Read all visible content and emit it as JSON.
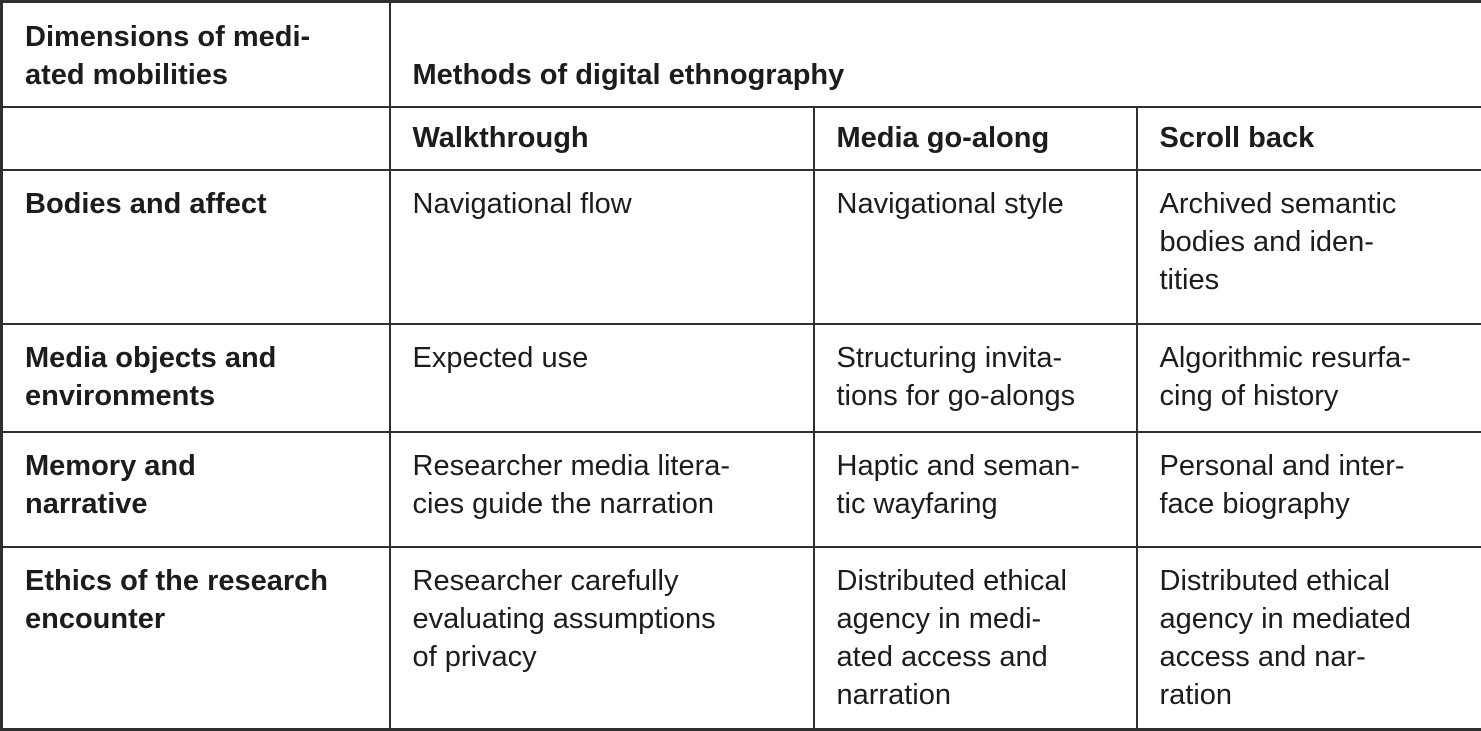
{
  "table": {
    "corner_header": "Dimensions of medi-\nated mobilities",
    "span_header": "Methods of digital ethnography",
    "method_columns": [
      "Walkthrough",
      "Media go-along",
      "Scroll back"
    ],
    "rows": [
      {
        "cells": [
          "Bodies and affect",
          "Navigational flow",
          "Navigational style",
          "Archived semantic\nbodies and iden-\ntities"
        ]
      },
      {
        "cells": [
          "Media objects and\nenvironments",
          "Expected use",
          "Structuring invita-\ntions for go-alongs",
          "Algorithmic resurfa-\ncing of history"
        ]
      },
      {
        "cells": [
          "Memory and\nnarrative",
          "Researcher media litera-\ncies guide the narration",
          "Haptic and seman-\ntic wayfaring",
          "Personal and inter-\nface biography"
        ]
      },
      {
        "cells": [
          "Ethics of the research\nencounter",
          "Researcher carefully\nevaluating assumptions\nof privacy",
          "Distributed ethical\nagency in medi-\nated access and\nnarration",
          "Distributed ethical\nagency in mediated\naccess and nar-\nration"
        ]
      }
    ],
    "colors": {
      "border": "#2f2f2f",
      "text": "#1c1c1c",
      "background": "#ffffff"
    }
  }
}
